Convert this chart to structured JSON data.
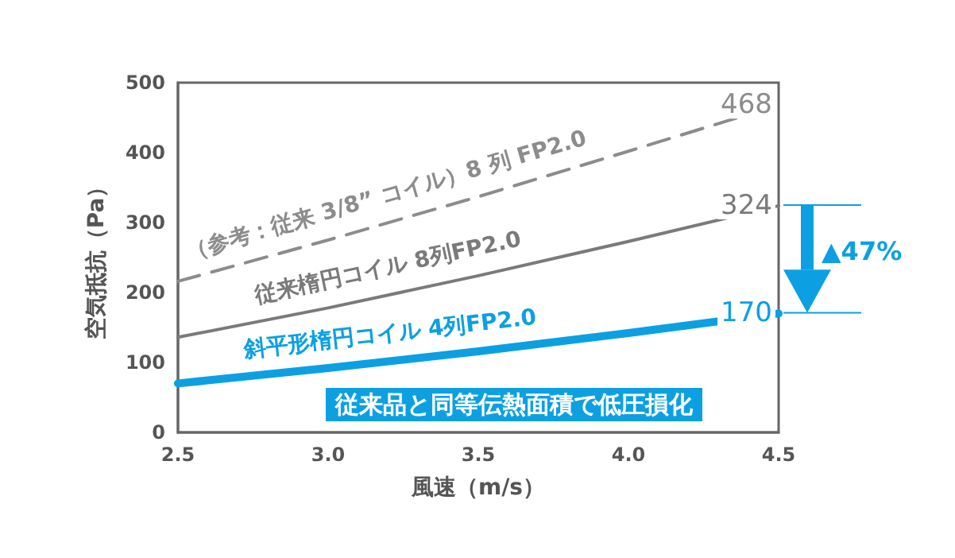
{
  "chart_data": {
    "type": "line",
    "xlabel": "風速（m/s）",
    "ylabel": "空気抵抗（Pa）",
    "x": [
      2.5,
      3.0,
      3.5,
      4.0,
      4.5
    ],
    "xlim": [
      2.5,
      4.5
    ],
    "xticks": [
      2.5,
      {
        "value": 3,
        "label": "3.0"
      },
      3.5,
      {
        "value": 4,
        "label": "4.0"
      },
      4.5
    ],
    "ylim": [
      0,
      500
    ],
    "yticks": [
      0,
      100,
      200,
      300,
      400,
      500
    ],
    "grid": false,
    "legend": false,
    "marker": "none",
    "series": [
      {
        "name": "（参考：従来 3/8” コイル）8 列 FP2.0",
        "color": "#8c8c8c",
        "line_style": "dashed",
        "values": [
          216,
          275,
          337,
          402,
          468
        ],
        "value_labels": [
          null,
          null,
          null,
          null,
          "468"
        ]
      },
      {
        "name": "従来楕円コイル 8列FP2.0",
        "color": "#7a7a7a",
        "line_style": "solid",
        "values": [
          136,
          178,
          224,
          273,
          324
        ],
        "value_labels": [
          null,
          null,
          null,
          null,
          "324"
        ]
      },
      {
        "name": "斜平形楕円コイル 4列FP2.0",
        "color": "#0ca0e2",
        "line_style": "solid",
        "values": [
          70,
          92,
          116,
          142,
          170
        ],
        "value_labels": [
          null,
          null,
          null,
          null,
          "170"
        ]
      }
    ],
    "annotations": [
      "従来品と同等伝熱面積で低圧損化",
      "▲47%"
    ]
  }
}
